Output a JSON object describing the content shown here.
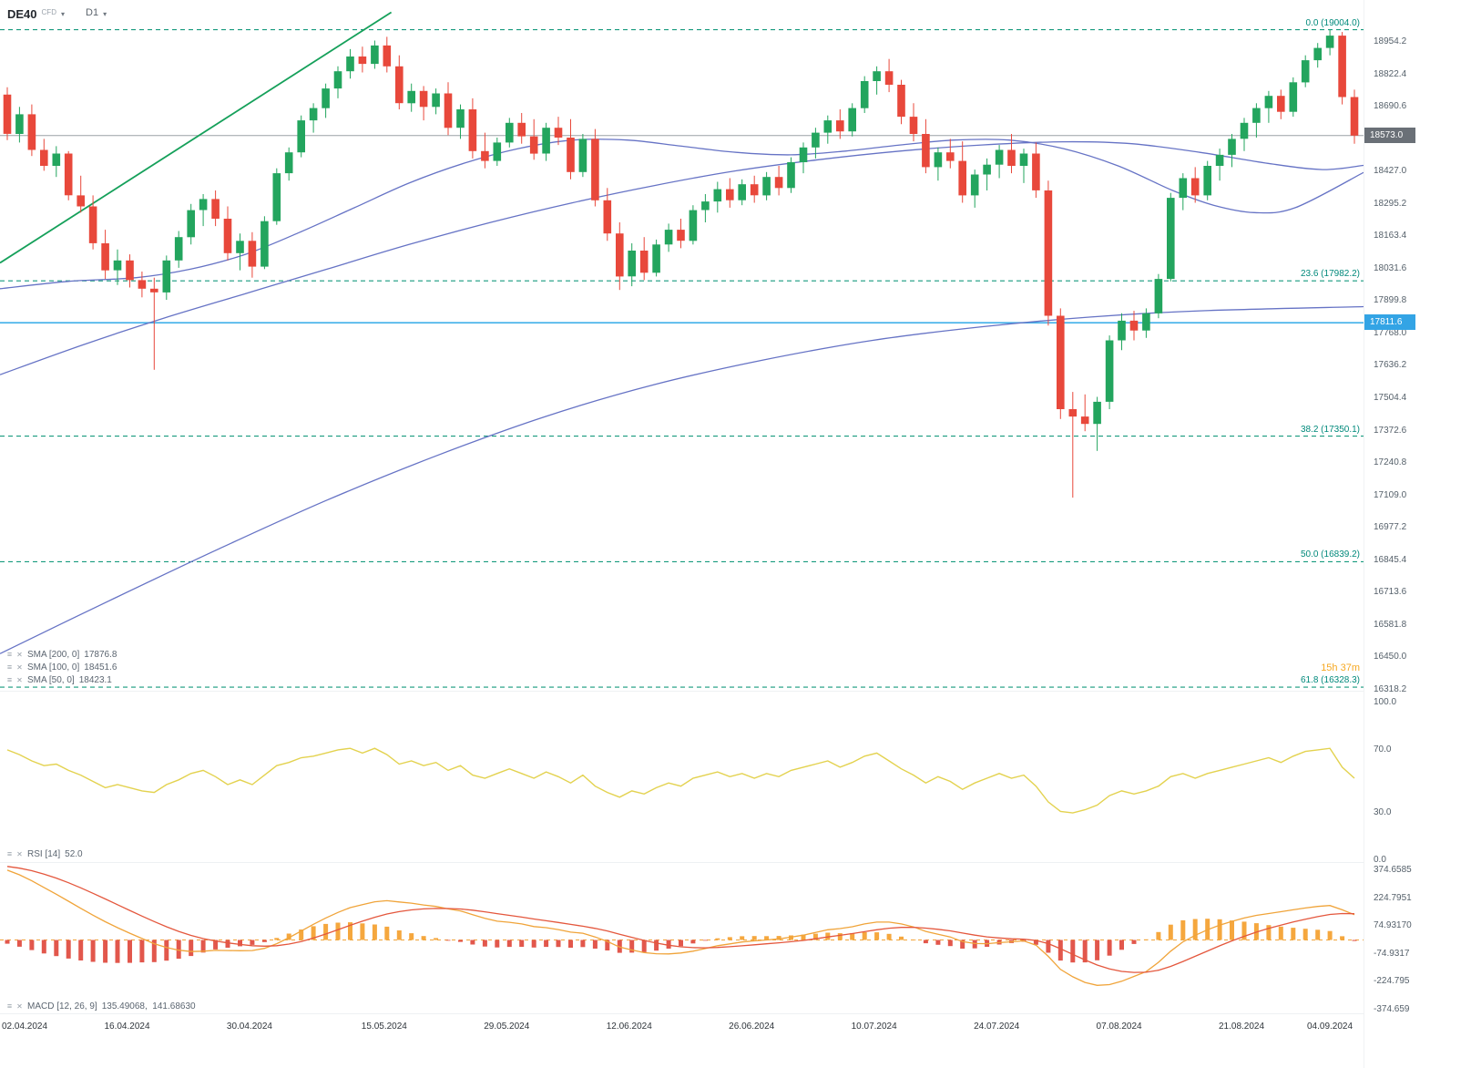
{
  "header": {
    "symbol": "DE40",
    "instrument_type": "CFD",
    "timeframe": "D1"
  },
  "countdown": "15h 37m",
  "colors": {
    "up": "#23a55e",
    "down": "#e8483b",
    "sma": "#6673c5",
    "trend": "#15a05a",
    "fib_line": "#169a7e",
    "fib_label": "#00897b",
    "level_line": "#41b1e9",
    "last_price_line": "#9aa0a6",
    "rsi": "#e3d24f",
    "macd_line": "#f0a43a",
    "signal_line": "#e4573d",
    "hist_up": "#f5a73e",
    "hist_down": "#e2574c"
  },
  "indicators": {
    "sma": [
      {
        "name": "SMA [200, 0]",
        "value": "17876.8"
      },
      {
        "name": "SMA [100, 0]",
        "value": "18451.6"
      },
      {
        "name": "SMA [50, 0]",
        "value": "18423.1"
      }
    ],
    "rsi": {
      "name": "RSI [14]",
      "value": "52.0"
    },
    "macd": {
      "name": "MACD [12, 26, 9]",
      "value": "135.49068,  141.68630"
    }
  },
  "chart_data": {
    "type": "candlestick",
    "title": "DE40 CFD D1",
    "price_range": [
      16314,
      19125
    ],
    "y_axis": {
      "price_ticks": [
        18954.2,
        18822.4,
        18690.6,
        18427.0,
        18295.2,
        18163.4,
        18031.6,
        17899.8,
        17768.0,
        17636.2,
        17504.4,
        17372.6,
        17240.8,
        17109.0,
        16977.2,
        16845.4,
        16713.6,
        16581.8,
        16450.0,
        16318.2
      ],
      "last_price_label": "18573.0",
      "level_label": "17811.6",
      "rsi_ticks": [
        "100.0",
        "70.0",
        "30.0",
        "0.0"
      ],
      "macd_ticks": [
        "374.6585",
        "224.7951",
        "74.93170",
        "-74.9317",
        "-224.795",
        "-374.659"
      ]
    },
    "x_axis": {
      "dates": [
        {
          "label": "02.04.2024",
          "i": 0
        },
        {
          "label": "16.04.2024",
          "i": 10
        },
        {
          "label": "30.04.2024",
          "i": 20
        },
        {
          "label": "15.05.2024",
          "i": 31
        },
        {
          "label": "29.05.2024",
          "i": 41
        },
        {
          "label": "12.06.2024",
          "i": 51
        },
        {
          "label": "26.06.2024",
          "i": 61
        },
        {
          "label": "10.07.2024",
          "i": 71
        },
        {
          "label": "24.07.2024",
          "i": 81
        },
        {
          "label": "07.08.2024",
          "i": 91
        },
        {
          "label": "21.08.2024",
          "i": 101
        },
        {
          "label": "04.09.2024",
          "i": 110
        }
      ]
    },
    "candles": [
      [
        18740,
        18770,
        18555,
        18580
      ],
      [
        18580,
        18690,
        18545,
        18660
      ],
      [
        18660,
        18700,
        18490,
        18515
      ],
      [
        18515,
        18560,
        18430,
        18450
      ],
      [
        18450,
        18530,
        18405,
        18500
      ],
      [
        18500,
        18510,
        18310,
        18330
      ],
      [
        18330,
        18410,
        18260,
        18285
      ],
      [
        18285,
        18330,
        18110,
        18135
      ],
      [
        18135,
        18190,
        17990,
        18025
      ],
      [
        18025,
        18110,
        17965,
        18065
      ],
      [
        18065,
        18090,
        17955,
        17985
      ],
      [
        17985,
        18020,
        17915,
        17950
      ],
      [
        17950,
        17995,
        17620,
        17935
      ],
      [
        17935,
        18085,
        17905,
        18065
      ],
      [
        18065,
        18185,
        18035,
        18160
      ],
      [
        18160,
        18295,
        18130,
        18270
      ],
      [
        18270,
        18335,
        18205,
        18315
      ],
      [
        18315,
        18350,
        18205,
        18235
      ],
      [
        18235,
        18285,
        18065,
        18095
      ],
      [
        18095,
        18175,
        18025,
        18145
      ],
      [
        18145,
        18180,
        17995,
        18040
      ],
      [
        18040,
        18245,
        18030,
        18225
      ],
      [
        18225,
        18440,
        18210,
        18420
      ],
      [
        18420,
        18525,
        18390,
        18505
      ],
      [
        18505,
        18655,
        18485,
        18635
      ],
      [
        18635,
        18705,
        18585,
        18685
      ],
      [
        18685,
        18785,
        18645,
        18765
      ],
      [
        18765,
        18855,
        18725,
        18835
      ],
      [
        18835,
        18925,
        18805,
        18895
      ],
      [
        18895,
        18935,
        18830,
        18865
      ],
      [
        18865,
        18960,
        18845,
        18940
      ],
      [
        18940,
        18975,
        18830,
        18855
      ],
      [
        18855,
        18900,
        18680,
        18705
      ],
      [
        18705,
        18785,
        18670,
        18755
      ],
      [
        18755,
        18775,
        18635,
        18690
      ],
      [
        18690,
        18765,
        18660,
        18745
      ],
      [
        18745,
        18790,
        18575,
        18605
      ],
      [
        18605,
        18700,
        18560,
        18680
      ],
      [
        18680,
        18725,
        18480,
        18510
      ],
      [
        18510,
        18585,
        18440,
        18470
      ],
      [
        18470,
        18565,
        18450,
        18545
      ],
      [
        18545,
        18645,
        18525,
        18625
      ],
      [
        18625,
        18665,
        18540,
        18570
      ],
      [
        18570,
        18640,
        18475,
        18500
      ],
      [
        18500,
        18625,
        18470,
        18605
      ],
      [
        18605,
        18650,
        18535,
        18565
      ],
      [
        18565,
        18640,
        18395,
        18425
      ],
      [
        18425,
        18580,
        18405,
        18560
      ],
      [
        18560,
        18600,
        18285,
        18310
      ],
      [
        18310,
        18360,
        18145,
        18175
      ],
      [
        18175,
        18220,
        17945,
        18000
      ],
      [
        18000,
        18135,
        17960,
        18105
      ],
      [
        18105,
        18160,
        17985,
        18015
      ],
      [
        18015,
        18150,
        18000,
        18130
      ],
      [
        18130,
        18215,
        18100,
        18190
      ],
      [
        18190,
        18235,
        18115,
        18145
      ],
      [
        18145,
        18290,
        18130,
        18270
      ],
      [
        18270,
        18335,
        18220,
        18305
      ],
      [
        18305,
        18385,
        18260,
        18355
      ],
      [
        18355,
        18400,
        18280,
        18310
      ],
      [
        18310,
        18395,
        18290,
        18375
      ],
      [
        18375,
        18410,
        18300,
        18330
      ],
      [
        18330,
        18425,
        18310,
        18405
      ],
      [
        18405,
        18450,
        18330,
        18360
      ],
      [
        18360,
        18485,
        18340,
        18465
      ],
      [
        18465,
        18545,
        18420,
        18525
      ],
      [
        18525,
        18605,
        18480,
        18585
      ],
      [
        18585,
        18655,
        18540,
        18635
      ],
      [
        18635,
        18680,
        18560,
        18590
      ],
      [
        18590,
        18705,
        18570,
        18685
      ],
      [
        18685,
        18815,
        18665,
        18795
      ],
      [
        18795,
        18855,
        18740,
        18835
      ],
      [
        18835,
        18885,
        18750,
        18780
      ],
      [
        18780,
        18800,
        18620,
        18650
      ],
      [
        18650,
        18705,
        18550,
        18580
      ],
      [
        18580,
        18640,
        18420,
        18445
      ],
      [
        18445,
        18525,
        18390,
        18505
      ],
      [
        18505,
        18560,
        18440,
        18470
      ],
      [
        18470,
        18550,
        18300,
        18330
      ],
      [
        18330,
        18435,
        18280,
        18415
      ],
      [
        18415,
        18480,
        18350,
        18455
      ],
      [
        18455,
        18535,
        18400,
        18515
      ],
      [
        18515,
        18580,
        18420,
        18450
      ],
      [
        18450,
        18520,
        18380,
        18500
      ],
      [
        18500,
        18545,
        18320,
        18350
      ],
      [
        18350,
        18390,
        17800,
        17840
      ],
      [
        17840,
        17870,
        17420,
        17460
      ],
      [
        17460,
        17530,
        17100,
        17430
      ],
      [
        17430,
        17520,
        17370,
        17400
      ],
      [
        17400,
        17510,
        17290,
        17490
      ],
      [
        17490,
        17760,
        17460,
        17740
      ],
      [
        17740,
        17850,
        17700,
        17820
      ],
      [
        17820,
        17860,
        17740,
        17780
      ],
      [
        17780,
        17870,
        17750,
        17850
      ],
      [
        17850,
        18010,
        17830,
        17990
      ],
      [
        17990,
        18340,
        17980,
        18320
      ],
      [
        18320,
        18420,
        18270,
        18400
      ],
      [
        18400,
        18445,
        18300,
        18330
      ],
      [
        18330,
        18470,
        18310,
        18450
      ],
      [
        18450,
        18520,
        18390,
        18495
      ],
      [
        18495,
        18580,
        18445,
        18560
      ],
      [
        18560,
        18645,
        18510,
        18625
      ],
      [
        18625,
        18705,
        18565,
        18685
      ],
      [
        18685,
        18755,
        18625,
        18735
      ],
      [
        18735,
        18760,
        18640,
        18670
      ],
      [
        18670,
        18810,
        18650,
        18790
      ],
      [
        18790,
        18900,
        18770,
        18880
      ],
      [
        18880,
        18950,
        18850,
        18930
      ],
      [
        18930,
        19004,
        18900,
        18980
      ],
      [
        18980,
        18995,
        18700,
        18730
      ],
      [
        18730,
        18760,
        18540,
        18573
      ]
    ],
    "overlays": {
      "last_price": 18573.0,
      "horizontal_level": 17811.6,
      "trendline": [
        [
          0,
          18055
        ],
        [
          0.287,
          19075
        ]
      ],
      "fib_levels": [
        {
          "label": "0.0 (19004.0)",
          "value": 19004.0
        },
        {
          "label": "23.6 (17982.2)",
          "value": 17982.2
        },
        {
          "label": "38.2 (17350.1)",
          "value": 17350.1
        },
        {
          "label": "50.0 (16839.2)",
          "value": 16839.2
        },
        {
          "label": "61.8 (16328.3)",
          "value": 16328.3
        }
      ],
      "sma_200": [
        [
          0,
          16465
        ],
        [
          0.08,
          16680
        ],
        [
          0.16,
          16890
        ],
        [
          0.24,
          17090
        ],
        [
          0.32,
          17270
        ],
        [
          0.4,
          17430
        ],
        [
          0.48,
          17560
        ],
        [
          0.56,
          17660
        ],
        [
          0.64,
          17740
        ],
        [
          0.72,
          17795
        ],
        [
          0.8,
          17835
        ],
        [
          0.88,
          17860
        ],
        [
          1,
          17877
        ]
      ],
      "sma_100": [
        [
          0,
          17600
        ],
        [
          0.06,
          17720
        ],
        [
          0.12,
          17830
        ],
        [
          0.18,
          17930
        ],
        [
          0.24,
          18030
        ],
        [
          0.3,
          18130
        ],
        [
          0.36,
          18220
        ],
        [
          0.42,
          18300
        ],
        [
          0.48,
          18370
        ],
        [
          0.54,
          18430
        ],
        [
          0.6,
          18475
        ],
        [
          0.66,
          18510
        ],
        [
          0.72,
          18535
        ],
        [
          0.78,
          18548
        ],
        [
          0.83,
          18540
        ],
        [
          0.88,
          18505
        ],
        [
          0.93,
          18460
        ],
        [
          0.97,
          18435
        ],
        [
          1,
          18452
        ]
      ],
      "sma_50": [
        [
          0,
          17950
        ],
        [
          0.05,
          17980
        ],
        [
          0.1,
          17995
        ],
        [
          0.14,
          18030
        ],
        [
          0.18,
          18090
        ],
        [
          0.22,
          18180
        ],
        [
          0.26,
          18280
        ],
        [
          0.3,
          18380
        ],
        [
          0.34,
          18460
        ],
        [
          0.38,
          18520
        ],
        [
          0.42,
          18555
        ],
        [
          0.46,
          18555
        ],
        [
          0.5,
          18530
        ],
        [
          0.54,
          18505
        ],
        [
          0.58,
          18495
        ],
        [
          0.62,
          18510
        ],
        [
          0.66,
          18535
        ],
        [
          0.7,
          18555
        ],
        [
          0.74,
          18555
        ],
        [
          0.78,
          18520
        ],
        [
          0.82,
          18450
        ],
        [
          0.86,
          18350
        ],
        [
          0.89,
          18290
        ],
        [
          0.92,
          18260
        ],
        [
          0.95,
          18280
        ],
        [
          1,
          18423
        ]
      ]
    },
    "rsi": {
      "period": 14,
      "last": 52.0,
      "scale": [
        0,
        100
      ],
      "values": [
        70,
        67,
        63,
        60,
        61,
        57,
        54,
        50,
        46,
        48,
        46,
        44,
        43,
        48,
        51,
        55,
        57,
        53,
        48,
        51,
        48,
        54,
        60,
        62,
        65,
        66,
        68,
        70,
        71,
        68,
        71,
        67,
        61,
        63,
        60,
        62,
        57,
        60,
        54,
        52,
        55,
        58,
        55,
        52,
        56,
        53,
        49,
        54,
        47,
        43,
        40,
        44,
        42,
        46,
        49,
        47,
        52,
        54,
        56,
        53,
        55,
        52,
        55,
        53,
        57,
        59,
        61,
        63,
        59,
        62,
        66,
        68,
        63,
        58,
        54,
        49,
        53,
        50,
        45,
        49,
        52,
        55,
        52,
        54,
        47,
        37,
        31,
        30,
        32,
        35,
        41,
        44,
        42,
        44,
        47,
        53,
        55,
        52,
        55,
        57,
        59,
        61,
        63,
        65,
        62,
        66,
        69,
        70,
        71,
        59,
        52
      ]
    },
    "macd": {
      "fast": 12,
      "slow": 26,
      "signal": 9,
      "last_macd": 135.49068,
      "last_signal": 141.6863,
      "signal_seed": 400,
      "scale": [
        -374.659,
        374.6585
      ],
      "values": [
        375,
        350,
        318,
        282,
        246,
        208,
        170,
        133,
        98,
        66,
        36,
        8,
        -20,
        -40,
        -55,
        -62,
        -60,
        -56,
        -57,
        -58,
        -57,
        -45,
        -20,
        12,
        48,
        84,
        118,
        148,
        174,
        190,
        205,
        211,
        204,
        198,
        188,
        180,
        167,
        156,
        136,
        116,
        101,
        95,
        86,
        72,
        66,
        56,
        42,
        36,
        16,
        -8,
        -38,
        -54,
        -68,
        -74,
        -75,
        -70,
        -60,
        -46,
        -31,
        -21,
        -11,
        -5,
        0,
        6,
        15,
        26,
        40,
        55,
        61,
        71,
        86,
        96,
        96,
        86,
        70,
        46,
        31,
        16,
        -9,
        -19,
        -20,
        -14,
        -10,
        -5,
        -28,
        -88,
        -158,
        -198,
        -228,
        -244,
        -240,
        -222,
        -196,
        -170,
        -120,
        -60,
        -10,
        25,
        55,
        80,
        100,
        118,
        132,
        142,
        152,
        162,
        172,
        180,
        185,
        162,
        135.49
      ]
    }
  }
}
